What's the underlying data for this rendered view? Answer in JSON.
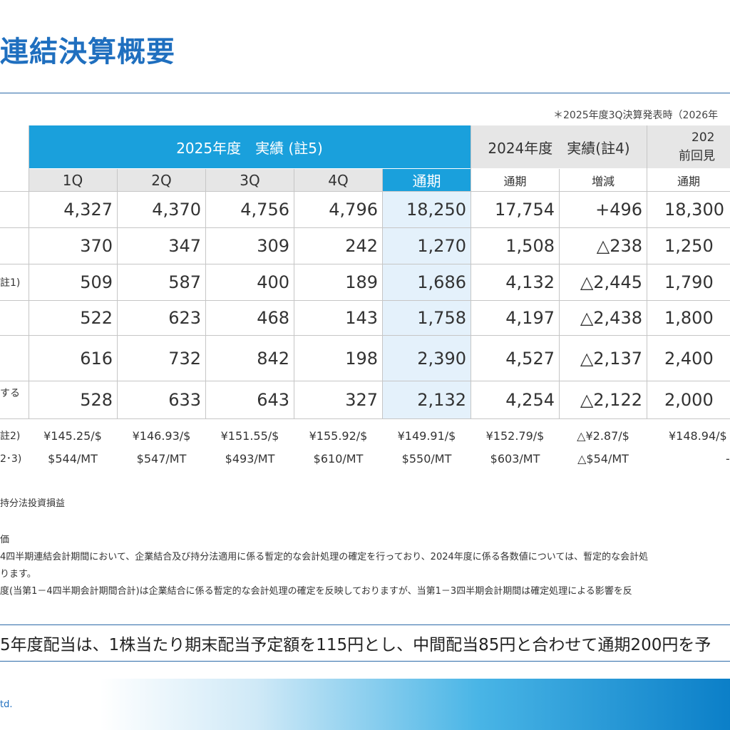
{
  "title": "連結決算概要",
  "note_top": "＊2025年度3Q決算発表時（2026年",
  "header": {
    "group_2025": "2025年度　実績 (註5)",
    "group_2024": "2024年度　実績(註4)",
    "group_forecast_line1": "202",
    "group_forecast_line2": "前回見",
    "sub": {
      "q1": "1Q",
      "q2": "2Q",
      "q3": "3Q",
      "q4": "4Q",
      "full_2025": "通期",
      "full_2024": "通期",
      "change": "増減",
      "full_forecast": "通期"
    }
  },
  "rows": [
    {
      "label": "",
      "q1": "4,327",
      "q2": "4,370",
      "q3": "4,756",
      "q4": "4,796",
      "full": "18,250",
      "prev": "17,754",
      "chg": "+496",
      "fcst": "18,300"
    },
    {
      "label": "",
      "q1": "370",
      "q2": "347",
      "q3": "309",
      "q4": "242",
      "full": "1,270",
      "prev": "1,508",
      "chg": "△238",
      "fcst": "1,250"
    },
    {
      "label": "註1)",
      "q1": "509",
      "q2": "587",
      "q3": "400",
      "q4": "189",
      "full": "1,686",
      "prev": "4,132",
      "chg": "△2,445",
      "fcst": "1,790"
    },
    {
      "label": "",
      "q1": "522",
      "q2": "623",
      "q3": "468",
      "q4": "143",
      "full": "1,758",
      "prev": "4,197",
      "chg": "△2,438",
      "fcst": "1,800"
    },
    {
      "label": "",
      "q1": "616",
      "q2": "732",
      "q3": "842",
      "q4": "198",
      "full": "2,390",
      "prev": "4,527",
      "chg": "△2,137",
      "fcst": "2,400"
    },
    {
      "label": "する",
      "q1": "528",
      "q2": "633",
      "q3": "643",
      "q4": "327",
      "full": "2,132",
      "prev": "4,254",
      "chg": "△2,122",
      "fcst": "2,000"
    }
  ],
  "fx_row": {
    "label": "註2)",
    "q1": "¥145.25/$",
    "q2": "¥146.93/$",
    "q3": "¥151.55/$",
    "q4": "¥155.92/$",
    "full": "¥149.91/$",
    "prev": "¥152.79/$",
    "chg": "△¥2.87/$",
    "fcst": "¥148.94/$"
  },
  "price_row": {
    "label": "2･3)",
    "q1": "$544/MT",
    "q2": "$547/MT",
    "q3": "$493/MT",
    "q4": "$610/MT",
    "full": "$550/MT",
    "prev": "$603/MT",
    "chg": "△$54/MT",
    "fcst": "-"
  },
  "footnotes": {
    "n1": "持分法投資損益",
    "n2": "価",
    "n3": "4四半期連結会計期間において、企業結合及び持分法適用に係る暫定的な会計処理の確定を行っており、2024年度に係る各数値については、暫定的な会計処",
    "n4": "ります。",
    "n5": "度(当第1－4四半期会計期間合計)は企業結合に係る暫定的な会計処理の確定を反映しておりますが、当第1－3四半期会計期間は確定処理による影響を反"
  },
  "dividend": "5年度配当は、1株当たり期末配当予定額を115円とし、中間配当85円と合わせて通期200円を予",
  "footer": "td.",
  "colors": {
    "title": "#1f6fbf",
    "header_blue": "#1aa0dc",
    "header_gray": "#e6e6e6",
    "highlight": "#e4f1fb"
  }
}
